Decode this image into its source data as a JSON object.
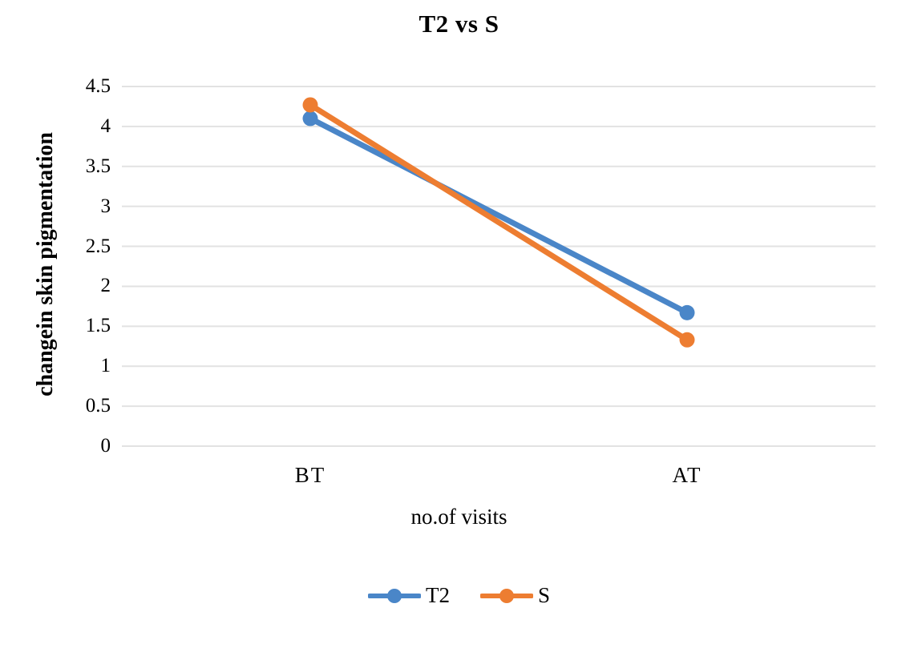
{
  "chart_data": {
    "type": "line",
    "title": "T2 vs S",
    "xlabel": "no.of visits",
    "ylabel": "changein skin pigmentation",
    "categories": [
      "BT",
      "AT"
    ],
    "series": [
      {
        "name": "T2",
        "color": "#4A86C8",
        "values": [
          4.1,
          1.67
        ]
      },
      {
        "name": "S",
        "color": "#ED7D31",
        "values": [
          4.27,
          1.33
        ]
      }
    ],
    "ylim": [
      0,
      4.5
    ],
    "ytick_step": 0.5,
    "grid": true,
    "gridline_color": "#E2E2E2",
    "legend_position": "bottom"
  }
}
